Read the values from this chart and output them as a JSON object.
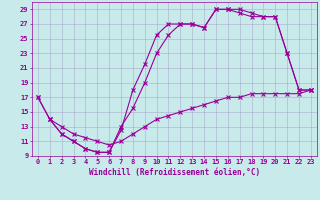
{
  "xlabel": "Windchill (Refroidissement éolien,°C)",
  "bg_color": "#c8eaea",
  "grid_color": "#aaaacc",
  "line_color": "#990099",
  "xlim": [
    -0.5,
    23.5
  ],
  "ylim": [
    9,
    30
  ],
  "xticks": [
    0,
    1,
    2,
    3,
    4,
    5,
    6,
    7,
    8,
    9,
    10,
    11,
    12,
    13,
    14,
    15,
    16,
    17,
    18,
    19,
    20,
    21,
    22,
    23
  ],
  "yticks": [
    9,
    11,
    13,
    15,
    17,
    19,
    21,
    23,
    25,
    27,
    29
  ],
  "line1_x": [
    0,
    1,
    2,
    3,
    4,
    5,
    6,
    7,
    8,
    9,
    10,
    11,
    12,
    13,
    14,
    15,
    16,
    17,
    18,
    19,
    20,
    21,
    22,
    23
  ],
  "line1_y": [
    17,
    14,
    12,
    11,
    10,
    9.5,
    9.5,
    13,
    15.5,
    19,
    23,
    25.5,
    27,
    27,
    26.5,
    29,
    29,
    29,
    28.5,
    28,
    28,
    23,
    18,
    18
  ],
  "line2_x": [
    0,
    1,
    2,
    3,
    4,
    5,
    6,
    7,
    8,
    9,
    10,
    11,
    12,
    13,
    14,
    15,
    16,
    17,
    18,
    19,
    20,
    21,
    22,
    23
  ],
  "line2_y": [
    17,
    14,
    12,
    11,
    10,
    9.5,
    9.5,
    12.5,
    18,
    21.5,
    25.5,
    27,
    27,
    27,
    26.5,
    29,
    29,
    28.5,
    28,
    28,
    28,
    23,
    18,
    18
  ],
  "line3_x": [
    1,
    2,
    3,
    4,
    5,
    6,
    7,
    8,
    9,
    10,
    11,
    12,
    13,
    14,
    15,
    16,
    17,
    18,
    19,
    20,
    21,
    22,
    23
  ],
  "line3_y": [
    14,
    13,
    12,
    11.5,
    11,
    10.5,
    11,
    12,
    13,
    14,
    14.5,
    15,
    15.5,
    16,
    16.5,
    17,
    17,
    17.5,
    17.5,
    17.5,
    17.5,
    17.5,
    18
  ],
  "tick_fontsize": 5.0,
  "xlabel_fontsize": 5.5,
  "marker_size": 2.5,
  "line_width": 0.8
}
